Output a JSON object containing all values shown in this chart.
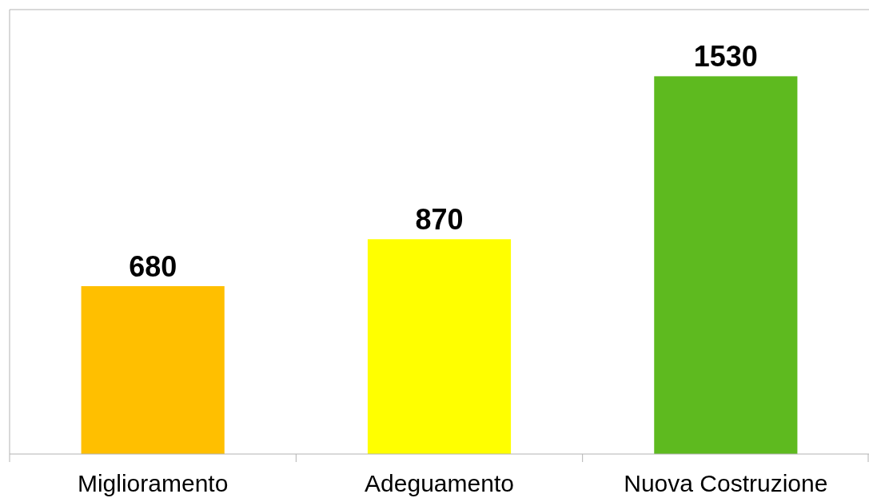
{
  "chart_data": {
    "type": "bar",
    "categories": [
      "Miglioramento",
      "Adeguamento",
      "Nuova Costruzione"
    ],
    "values": [
      680,
      870,
      1530
    ],
    "colors": [
      "#ffbf00",
      "#ffff00",
      "#5eba1f"
    ],
    "ylim": [
      0,
      1800
    ],
    "data_labels": true
  }
}
